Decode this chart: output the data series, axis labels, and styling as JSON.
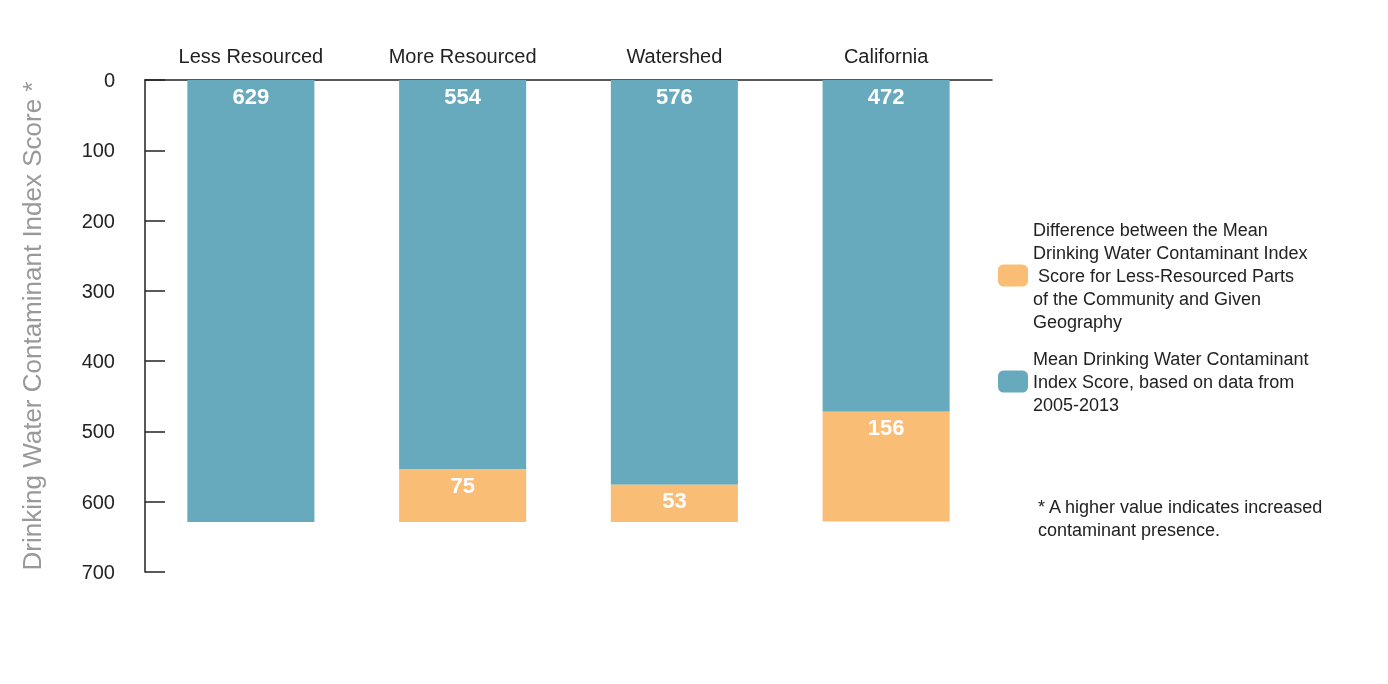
{
  "chart_data": {
    "type": "bar",
    "stacked": true,
    "ylabel": "Drinking Water Contaminant Index Score *",
    "categories": [
      "Less Resourced",
      "More Resourced",
      "Watershed",
      "California"
    ],
    "series": [
      {
        "name": "Mean Drinking Water Contaminant Index Score, based on data from 2005-2013",
        "color": "#68aabd",
        "values": [
          629,
          554,
          576,
          472
        ]
      },
      {
        "name": "Difference between the Mean Drinking Water Contaminant Index Score for Less-Resourced Parts of the Community and Given Geography",
        "color": "#f9bd75",
        "values": [
          null,
          75,
          53,
          156
        ]
      }
    ],
    "ylim": [
      700,
      0
    ],
    "yticks": [
      0,
      100,
      200,
      300,
      400,
      500,
      600,
      700
    ],
    "data_labels": true,
    "grid": false,
    "legend": "right",
    "annotations": [
      "* A higher value indicates increased contaminant presence."
    ]
  }
}
